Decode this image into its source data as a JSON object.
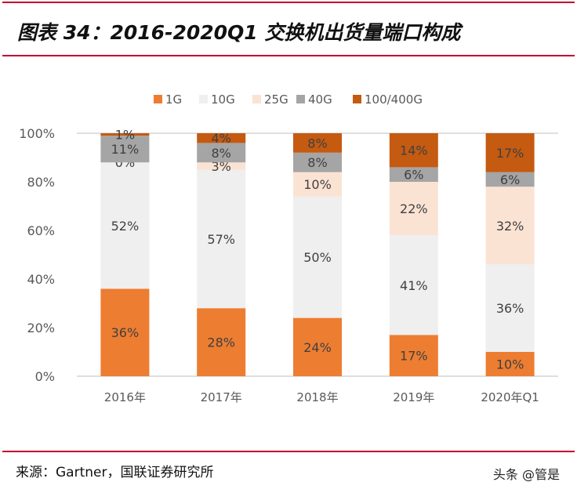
{
  "header": {
    "title": "图表 34：2016-2020Q1 交换机出货量端口构成"
  },
  "footer": {
    "source": "来源：Gartner，国联证券研究所",
    "watermark": "头条 @管是"
  },
  "chart_data": {
    "type": "bar",
    "stacked": true,
    "title": "",
    "categories": [
      "2016年",
      "2017年",
      "2018年",
      "2019年",
      "2020年Q1"
    ],
    "ylim": [
      0,
      100
    ],
    "yticks": [
      "0%",
      "20%",
      "40%",
      "60%",
      "80%",
      "100%"
    ],
    "legend_position": "top",
    "grid": false,
    "series": [
      {
        "name": "1G",
        "color": "#ED7D31",
        "values": [
          36,
          28,
          24,
          17,
          10
        ]
      },
      {
        "name": "10G",
        "color": "#EFEFEF",
        "values": [
          52,
          57,
          50,
          41,
          36
        ]
      },
      {
        "name": "25G",
        "color": "#FBE3D4",
        "values": [
          0,
          3,
          10,
          22,
          32
        ]
      },
      {
        "name": "40G",
        "color": "#A5A5A5",
        "values": [
          11,
          8,
          8,
          6,
          6
        ]
      },
      {
        "name": "100/400G",
        "color": "#C55A11",
        "values": [
          1,
          4,
          8,
          14,
          17
        ]
      }
    ]
  }
}
